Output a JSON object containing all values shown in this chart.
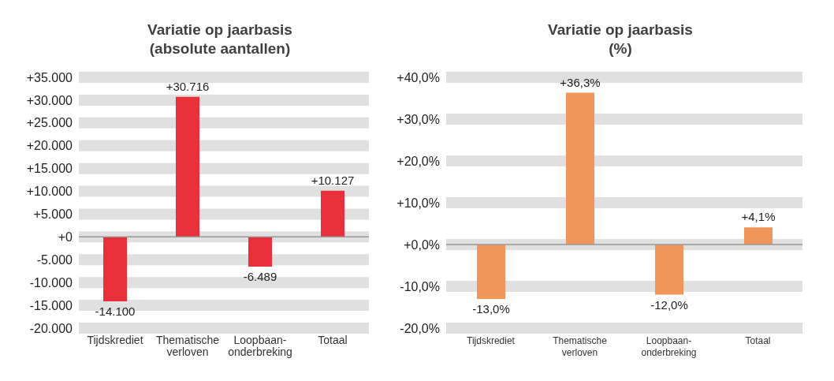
{
  "chart_data": [
    {
      "type": "bar",
      "title": "Variatie op jaarbasis\n(absolute aantallen)",
      "categories": [
        "Tijdskrediet",
        "Thematische\nverloven",
        "Loopbaan-\nonderbreking",
        "Totaal"
      ],
      "values": [
        -14100,
        30716,
        -6489,
        10127
      ],
      "value_labels": [
        "-14.100",
        "+30.716",
        "-6.489",
        "+10.127"
      ],
      "color": "#e8313a",
      "ylim": [
        -20000,
        35000
      ],
      "yticks": [
        {
          "value": -20000,
          "label": "-20.000"
        },
        {
          "value": -15000,
          "label": "-15.000"
        },
        {
          "value": -10000,
          "label": "-10.000"
        },
        {
          "value": -5000,
          "label": "-5.000"
        },
        {
          "value": 0,
          "label": "+0"
        },
        {
          "value": 5000,
          "label": "+5.000"
        },
        {
          "value": 10000,
          "label": "+10.000"
        },
        {
          "value": 15000,
          "label": "+15.000"
        },
        {
          "value": 20000,
          "label": "+20.000"
        },
        {
          "value": 25000,
          "label": "+25.000"
        },
        {
          "value": 30000,
          "label": "+30.000"
        },
        {
          "value": 35000,
          "label": "+35.000"
        }
      ],
      "grid": "y"
    },
    {
      "type": "bar",
      "title": "Variatie op jaarbasis\n(%)",
      "categories": [
        "Tijdskrediet",
        "Thematische\nverloven",
        "Loopbaan-\nonderbreking",
        "Totaal"
      ],
      "values": [
        -13.0,
        36.3,
        -12.0,
        4.1
      ],
      "value_labels": [
        "-13,0%",
        "+36,3%",
        "-12,0%",
        "+4,1%"
      ],
      "color": "#f0965a",
      "ylim": [
        -20,
        40
      ],
      "yticks": [
        {
          "value": -20,
          "label": "-20,0%"
        },
        {
          "value": -10,
          "label": "-10,0%"
        },
        {
          "value": 0,
          "label": "+0,0%"
        },
        {
          "value": 10,
          "label": "+10,0%"
        },
        {
          "value": 20,
          "label": "+20,0%"
        },
        {
          "value": 30,
          "label": "+30,0%"
        },
        {
          "value": 40,
          "label": "+40,0%"
        }
      ],
      "grid": "y"
    }
  ]
}
